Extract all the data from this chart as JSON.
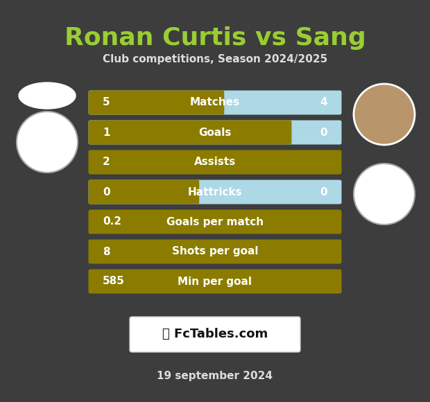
{
  "title": "Ronan Curtis vs Sang",
  "subtitle": "Club competitions, Season 2024/2025",
  "footer": "19 september 2024",
  "background_color": "#3d3d3d",
  "bar_gold_color": "#8B7C00",
  "bar_blue_color": "#ADD8E6",
  "title_color": "#9ACD32",
  "subtitle_color": "#dddddd",
  "footer_color": "#dddddd",
  "text_color": "#ffffff",
  "fig_w": 6.2,
  "fig_h": 5.8,
  "dpi": 100,
  "rows": [
    {
      "label": "Matches",
      "left_val": "5",
      "right_val": "4",
      "blue_ratio": 0.47
    },
    {
      "label": "Goals",
      "left_val": "1",
      "right_val": "0",
      "blue_ratio": 0.2
    },
    {
      "label": "Assists",
      "left_val": "2",
      "right_val": "",
      "blue_ratio": 0.0
    },
    {
      "label": "Hattricks",
      "left_val": "0",
      "right_val": "0",
      "blue_ratio": 0.57
    },
    {
      "label": "Goals per match",
      "left_val": "0.2",
      "right_val": "",
      "blue_ratio": 0.0
    },
    {
      "label": "Shots per goal",
      "left_val": "8",
      "right_val": "",
      "blue_ratio": 0.0
    },
    {
      "label": "Min per goal",
      "left_val": "585",
      "right_val": "",
      "blue_ratio": 0.0
    }
  ]
}
